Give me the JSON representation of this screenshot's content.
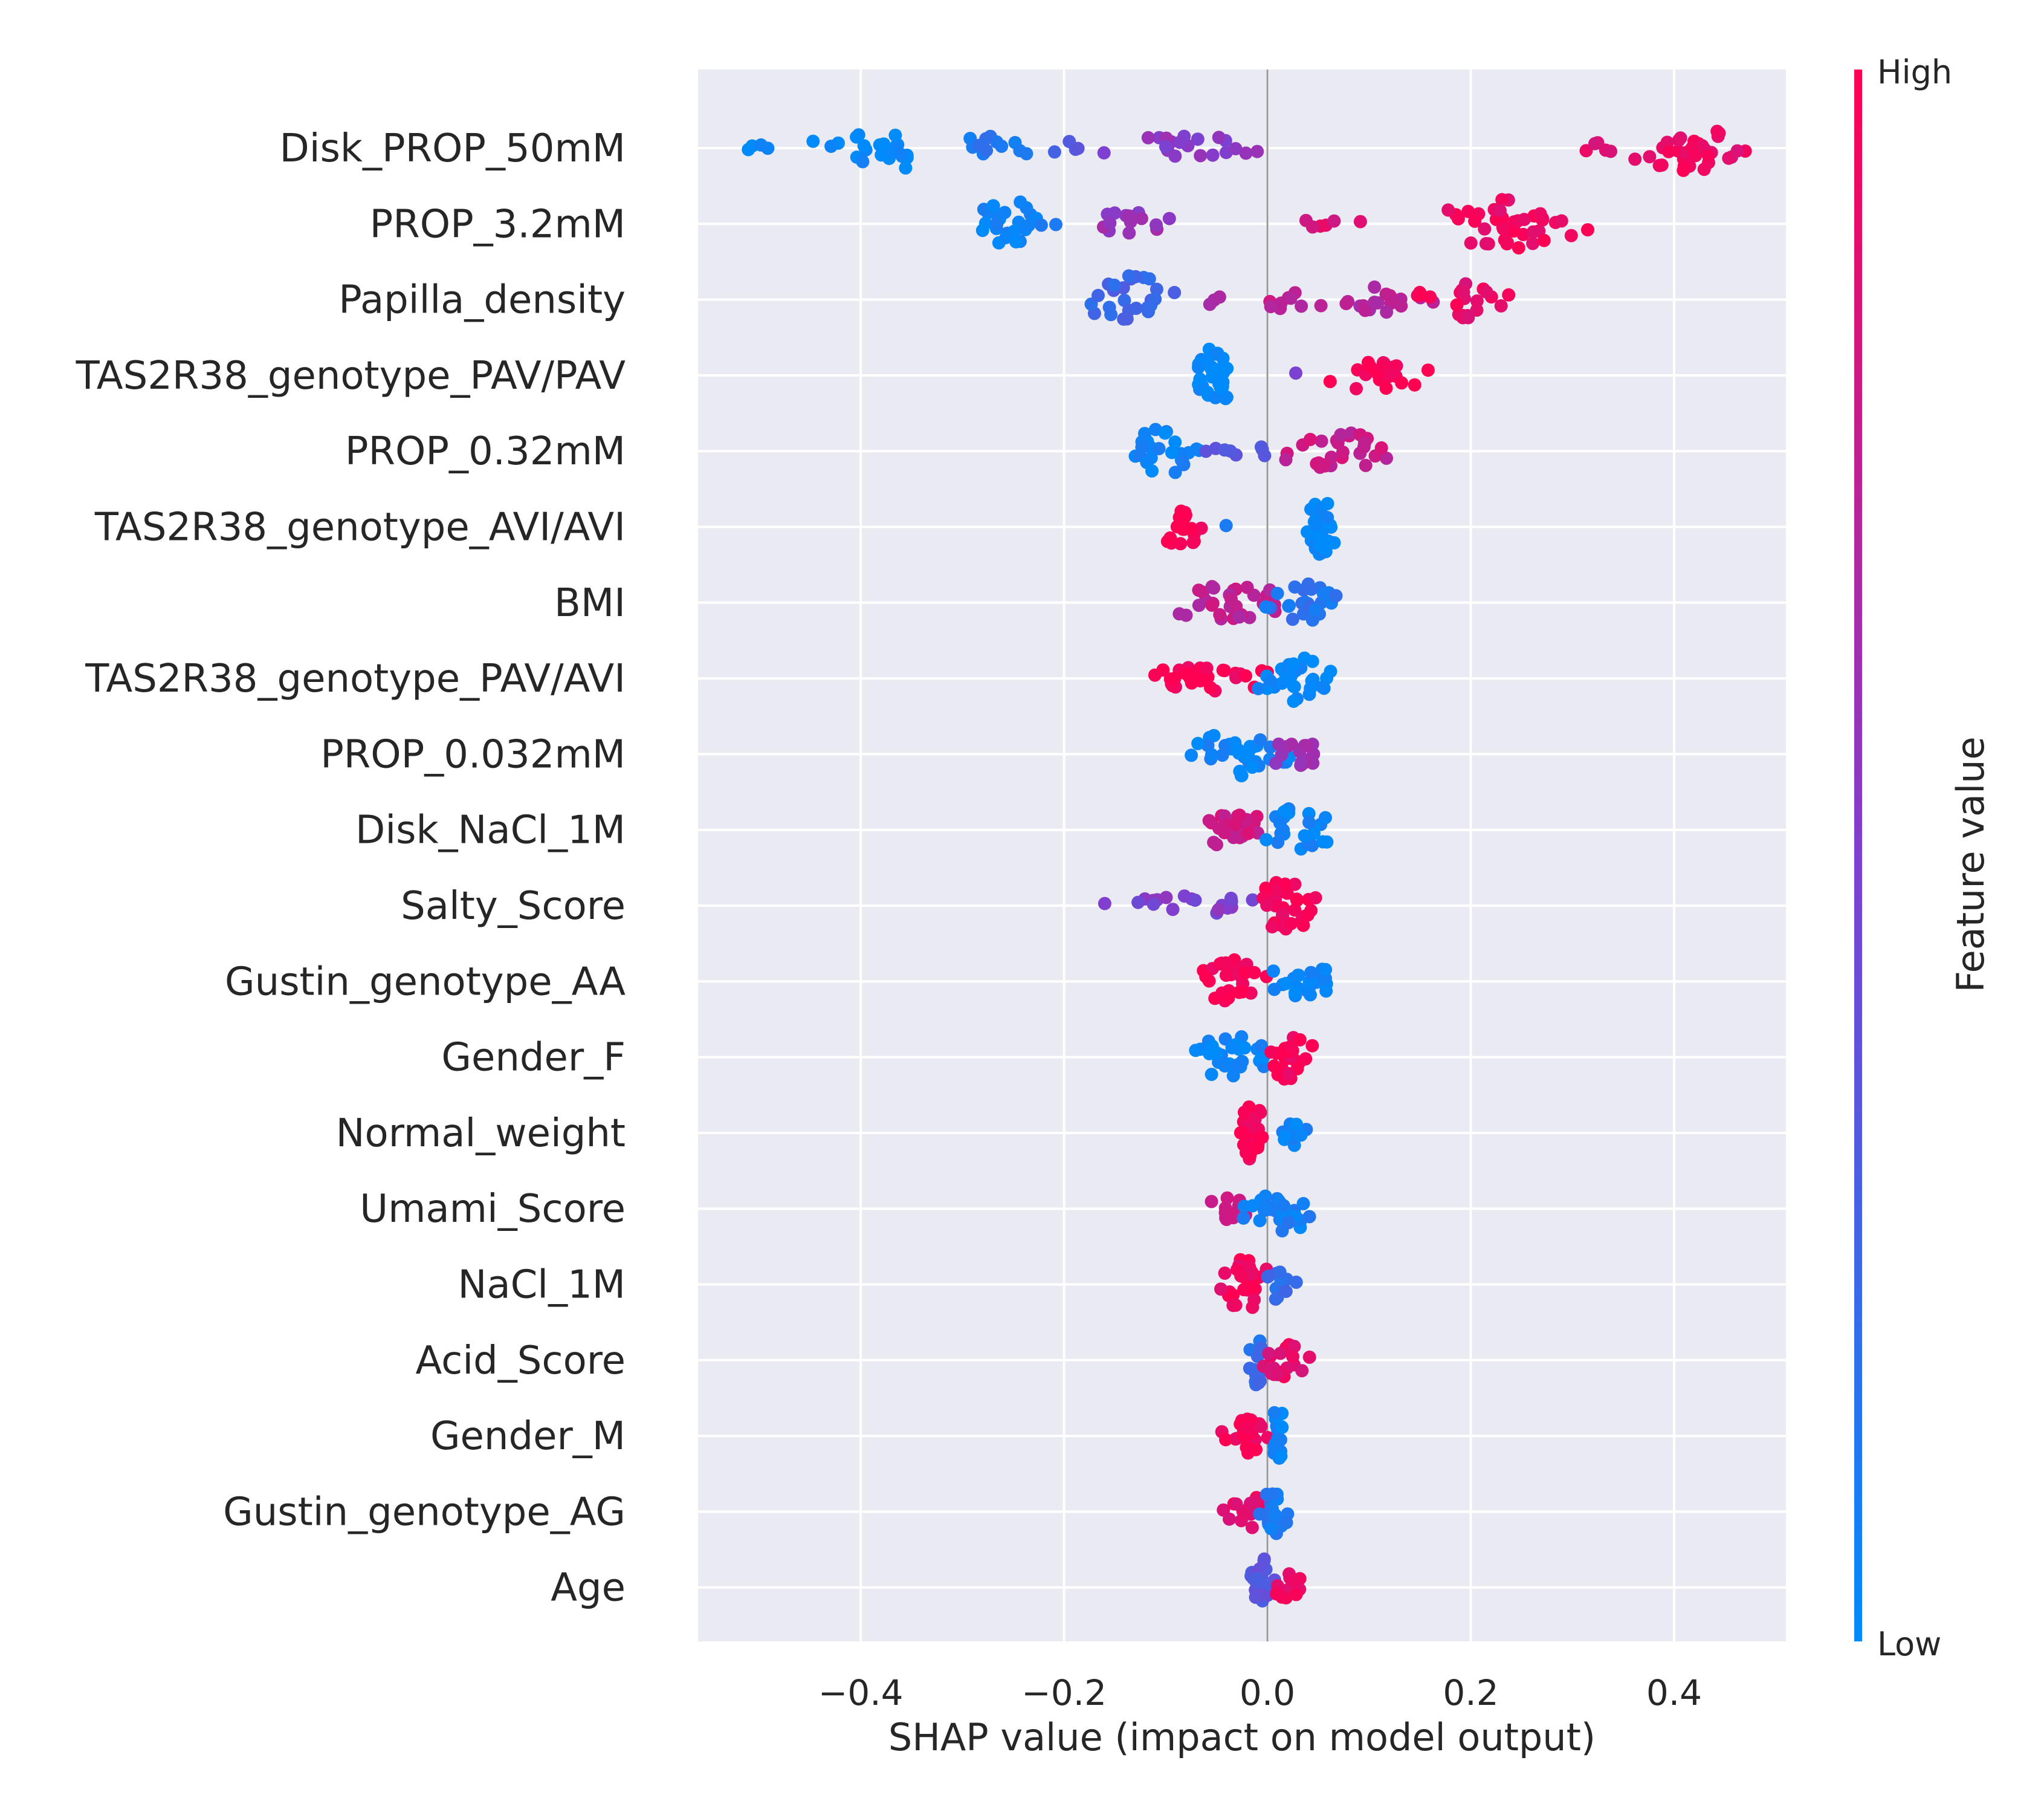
{
  "chart_data": {
    "type": "scatter",
    "subtype": "shap-beeswarm",
    "xlabel": "SHAP value (impact on model output)",
    "xlim": [
      -0.56,
      0.51
    ],
    "xticks": [
      -0.4,
      -0.2,
      0.0,
      0.2,
      0.4
    ],
    "xtick_labels": [
      "−0.4",
      "−0.2",
      "0.0",
      "0.2",
      "0.4"
    ],
    "grid": true,
    "zero_line": true,
    "colorbar": {
      "label": "Feature value",
      "high_label": "High",
      "low_label": "Low",
      "high_color": "#ff0052",
      "low_color": "#008bfb"
    },
    "features": [
      {
        "name": "Disk_PROP_50mM",
        "clusters": [
          {
            "center": -0.39,
            "spread": 0.07,
            "width": 0.8,
            "fv": 0.0,
            "n": 22
          },
          {
            "center": -0.5,
            "spread": 0.03,
            "width": 0.15,
            "fv": 0.0,
            "n": 4
          },
          {
            "center": -0.27,
            "spread": 0.04,
            "width": 0.5,
            "fv": 0.12,
            "n": 12
          },
          {
            "center": -0.2,
            "spread": 0.02,
            "width": 0.25,
            "fv": 0.3,
            "n": 4
          },
          {
            "center": -0.08,
            "spread": 0.07,
            "width": 0.45,
            "fv": 0.55,
            "n": 20
          },
          {
            "center": 0.33,
            "spread": 0.02,
            "width": 0.2,
            "fv": 0.9,
            "n": 5
          },
          {
            "center": 0.42,
            "spread": 0.06,
            "width": 0.8,
            "fv": 0.92,
            "n": 34
          }
        ]
      },
      {
        "name": "PROP_3.2mM",
        "clusters": [
          {
            "center": -0.255,
            "spread": 0.04,
            "width": 0.8,
            "fv": 0.05,
            "n": 26
          },
          {
            "center": -0.13,
            "spread": 0.04,
            "width": 0.45,
            "fv": 0.6,
            "n": 14
          },
          {
            "center": 0.06,
            "spread": 0.03,
            "width": 0.25,
            "fv": 0.85,
            "n": 6
          },
          {
            "center": 0.235,
            "spread": 0.065,
            "width": 0.85,
            "fv": 0.95,
            "n": 42
          }
        ]
      },
      {
        "name": "Papilla_density",
        "clusters": [
          {
            "center": -0.13,
            "spread": 0.05,
            "width": 0.85,
            "fv": 0.25,
            "n": 26
          },
          {
            "center": -0.05,
            "spread": 0.02,
            "width": 0.2,
            "fv": 0.6,
            "n": 3
          },
          {
            "center": 0.03,
            "spread": 0.04,
            "width": 0.35,
            "fv": 0.75,
            "n": 10
          },
          {
            "center": 0.11,
            "spread": 0.04,
            "width": 0.45,
            "fv": 0.7,
            "n": 16
          },
          {
            "center": 0.2,
            "spread": 0.04,
            "width": 0.7,
            "fv": 0.92,
            "n": 22
          }
        ]
      },
      {
        "name": "TAS2R38_genotype_PAV/PAV",
        "clusters": [
          {
            "center": -0.052,
            "spread": 0.02,
            "width": 1.0,
            "fv": 0.0,
            "n": 34
          },
          {
            "center": 0.025,
            "spread": 0.005,
            "width": 0.1,
            "fv": 0.55,
            "n": 1
          },
          {
            "center": 0.11,
            "spread": 0.045,
            "width": 0.55,
            "fv": 0.98,
            "n": 22
          }
        ]
      },
      {
        "name": "PROP_0.32mM",
        "clusters": [
          {
            "center": -0.1,
            "spread": 0.04,
            "width": 0.8,
            "fv": 0.05,
            "n": 24
          },
          {
            "center": -0.03,
            "spread": 0.03,
            "width": 0.25,
            "fv": 0.3,
            "n": 8
          },
          {
            "center": 0.07,
            "spread": 0.05,
            "width": 0.65,
            "fv": 0.78,
            "n": 30
          }
        ]
      },
      {
        "name": "TAS2R38_genotype_AVI/AVI",
        "clusters": [
          {
            "center": -0.085,
            "spread": 0.02,
            "width": 0.7,
            "fv": 1.0,
            "n": 20
          },
          {
            "center": -0.04,
            "spread": 0.003,
            "width": 0.1,
            "fv": 0.15,
            "n": 1
          },
          {
            "center": 0.052,
            "spread": 0.013,
            "width": 1.0,
            "fv": 0.0,
            "n": 40
          }
        ]
      },
      {
        "name": "BMI",
        "clusters": [
          {
            "center": -0.04,
            "spread": 0.06,
            "width": 0.6,
            "fv": 0.75,
            "n": 34
          },
          {
            "center": 0.035,
            "spread": 0.04,
            "width": 0.7,
            "fv": 0.15,
            "n": 26
          }
        ]
      },
      {
        "name": "TAS2R38_genotype_PAV/AVI",
        "clusters": [
          {
            "center": -0.05,
            "spread": 0.07,
            "width": 0.45,
            "fv": 0.98,
            "n": 30
          },
          {
            "center": 0.03,
            "spread": 0.035,
            "width": 0.8,
            "fv": 0.0,
            "n": 30
          }
        ]
      },
      {
        "name": "PROP_0.032mM",
        "clusters": [
          {
            "center": -0.03,
            "spread": 0.045,
            "width": 0.75,
            "fv": 0.05,
            "n": 34
          },
          {
            "center": 0.03,
            "spread": 0.03,
            "width": 0.45,
            "fv": 0.6,
            "n": 16
          }
        ]
      },
      {
        "name": "Disk_NaCl_1M",
        "clusters": [
          {
            "center": -0.03,
            "spread": 0.03,
            "width": 0.7,
            "fv": 0.8,
            "n": 26
          },
          {
            "center": 0.03,
            "spread": 0.025,
            "width": 0.8,
            "fv": 0.05,
            "n": 24
          }
        ]
      },
      {
        "name": "Salty_Score",
        "clusters": [
          {
            "center": -0.08,
            "spread": 0.065,
            "width": 0.35,
            "fv": 0.5,
            "n": 20
          },
          {
            "center": 0.02,
            "spread": 0.03,
            "width": 0.9,
            "fv": 0.98,
            "n": 36
          }
        ]
      },
      {
        "name": "Gustin_genotype_AA",
        "clusters": [
          {
            "center": -0.035,
            "spread": 0.03,
            "width": 0.8,
            "fv": 0.98,
            "n": 28
          },
          {
            "center": 0.035,
            "spread": 0.03,
            "width": 0.6,
            "fv": 0.05,
            "n": 24
          }
        ]
      },
      {
        "name": "Gender_F",
        "clusters": [
          {
            "center": -0.035,
            "spread": 0.035,
            "width": 0.8,
            "fv": 0.02,
            "n": 28
          },
          {
            "center": 0.02,
            "spread": 0.02,
            "width": 0.8,
            "fv": 0.98,
            "n": 24
          }
        ]
      },
      {
        "name": "Normal_weight",
        "clusters": [
          {
            "center": -0.015,
            "spread": 0.012,
            "width": 1.0,
            "fv": 0.98,
            "n": 30
          },
          {
            "center": 0.025,
            "spread": 0.015,
            "width": 0.5,
            "fv": 0.05,
            "n": 14
          }
        ]
      },
      {
        "name": "Umami_Score",
        "clusters": [
          {
            "center": -0.035,
            "spread": 0.02,
            "width": 0.5,
            "fv": 0.75,
            "n": 12
          },
          {
            "center": 0.015,
            "spread": 0.03,
            "width": 0.8,
            "fv": 0.08,
            "n": 32
          }
        ]
      },
      {
        "name": "NaCl_1M",
        "clusters": [
          {
            "center": -0.02,
            "spread": 0.025,
            "width": 0.9,
            "fv": 0.95,
            "n": 30
          },
          {
            "center": 0.012,
            "spread": 0.012,
            "width": 0.7,
            "fv": 0.2,
            "n": 12
          }
        ]
      },
      {
        "name": "Acid_Score",
        "clusters": [
          {
            "center": -0.01,
            "spread": 0.008,
            "width": 0.9,
            "fv": 0.2,
            "n": 16
          },
          {
            "center": 0.015,
            "spread": 0.02,
            "width": 0.6,
            "fv": 0.9,
            "n": 20
          }
        ]
      },
      {
        "name": "Gender_M",
        "clusters": [
          {
            "center": -0.02,
            "spread": 0.018,
            "width": 0.6,
            "fv": 0.98,
            "n": 22
          },
          {
            "center": 0.01,
            "spread": 0.01,
            "width": 0.9,
            "fv": 0.02,
            "n": 18
          }
        ]
      },
      {
        "name": "Gustin_genotype_AG",
        "clusters": [
          {
            "center": -0.015,
            "spread": 0.025,
            "width": 0.7,
            "fv": 0.9,
            "n": 22
          },
          {
            "center": 0.005,
            "spread": 0.015,
            "width": 0.8,
            "fv": 0.1,
            "n": 22
          }
        ]
      },
      {
        "name": "Age",
        "clusters": [
          {
            "center": -0.005,
            "spread": 0.01,
            "width": 1.0,
            "fv": 0.35,
            "n": 26
          },
          {
            "center": 0.022,
            "spread": 0.012,
            "width": 0.5,
            "fv": 0.95,
            "n": 12
          }
        ]
      }
    ]
  }
}
